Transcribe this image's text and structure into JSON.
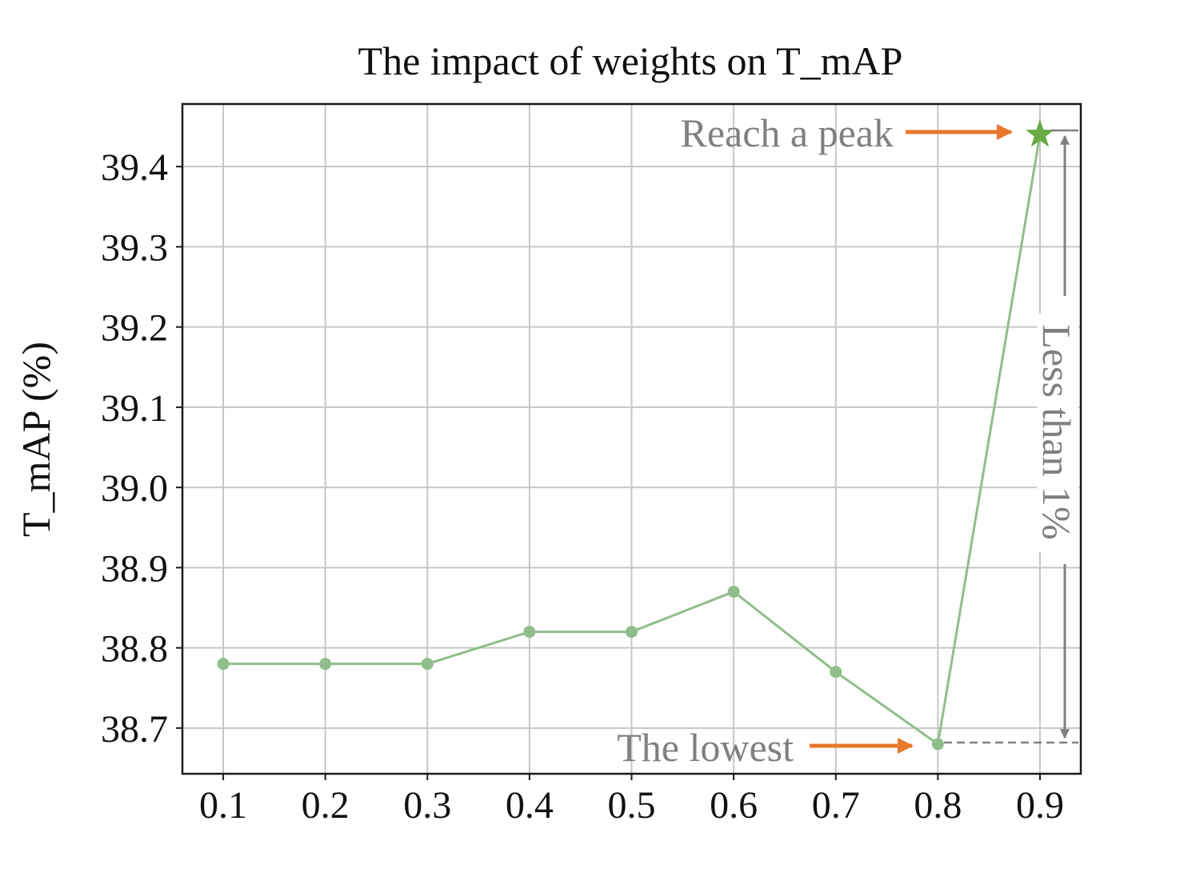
{
  "chart_data": {
    "type": "line",
    "title": "The impact of weights on T_mAP",
    "xlabel": "",
    "ylabel": "T_mAP (%)",
    "x": [
      0.1,
      0.2,
      0.3,
      0.4,
      0.5,
      0.6,
      0.7,
      0.8,
      0.9
    ],
    "xtick_labels": [
      "0.1",
      "0.2",
      "0.3",
      "0.4",
      "0.5",
      "0.6",
      "0.7",
      "0.8",
      "0.9"
    ],
    "yticks": [
      38.7,
      38.8,
      38.9,
      39.0,
      39.1,
      39.2,
      39.3,
      39.4
    ],
    "ytick_labels": [
      "38.7",
      "38.8",
      "38.9",
      "39.0",
      "39.1",
      "39.2",
      "39.3",
      "39.4"
    ],
    "xlim": [
      0.06,
      0.94
    ],
    "ylim": [
      38.643,
      39.478
    ],
    "grid": true,
    "series": [
      {
        "name": "T_mAP",
        "color": "#8fbe8a",
        "marker": "circle",
        "values": [
          38.78,
          38.78,
          38.78,
          38.82,
          38.82,
          38.87,
          38.77,
          38.68,
          39.44
        ]
      }
    ],
    "peak": {
      "x": 0.9,
      "y": 39.44,
      "marker": "star",
      "color": "#6aaa46"
    },
    "lowest": {
      "x": 0.8,
      "y": 38.68
    },
    "annotations": {
      "peak_label": "Reach a peak",
      "lowest_label": "The lowest",
      "range_label": "Less than 1%",
      "arrow_color": "#e8782c",
      "text_color": "#808080"
    }
  }
}
